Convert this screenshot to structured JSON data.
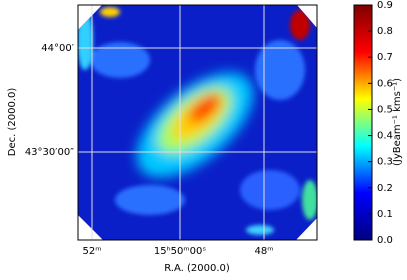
{
  "chart_data": {
    "type": "image",
    "xlabel": "R.A. (2000.0)",
    "ylabel": "Dec. (2000.0)",
    "xtick_labels": [
      "52ᵐ",
      "15ʰ50ᵐ00ˢ",
      "48ᵐ"
    ],
    "ytick_labels": [
      "44°00′",
      "43°30′00″"
    ],
    "grid": true,
    "colorbar": {
      "label": "(JyBeam⁻¹ kms⁻¹)",
      "clim": [
        0,
        0.9
      ],
      "ticks": [
        {
          "value": 0,
          "label": "0.0"
        },
        0.1,
        0.2,
        0.3,
        0.4,
        0.5,
        0.6,
        0.7,
        0.8,
        0.9
      ],
      "colormap": [
        "#00007f",
        "#0000ff",
        "#00ffff",
        "#ffff00",
        "#ff0000",
        "#7f0000"
      ]
    }
  }
}
